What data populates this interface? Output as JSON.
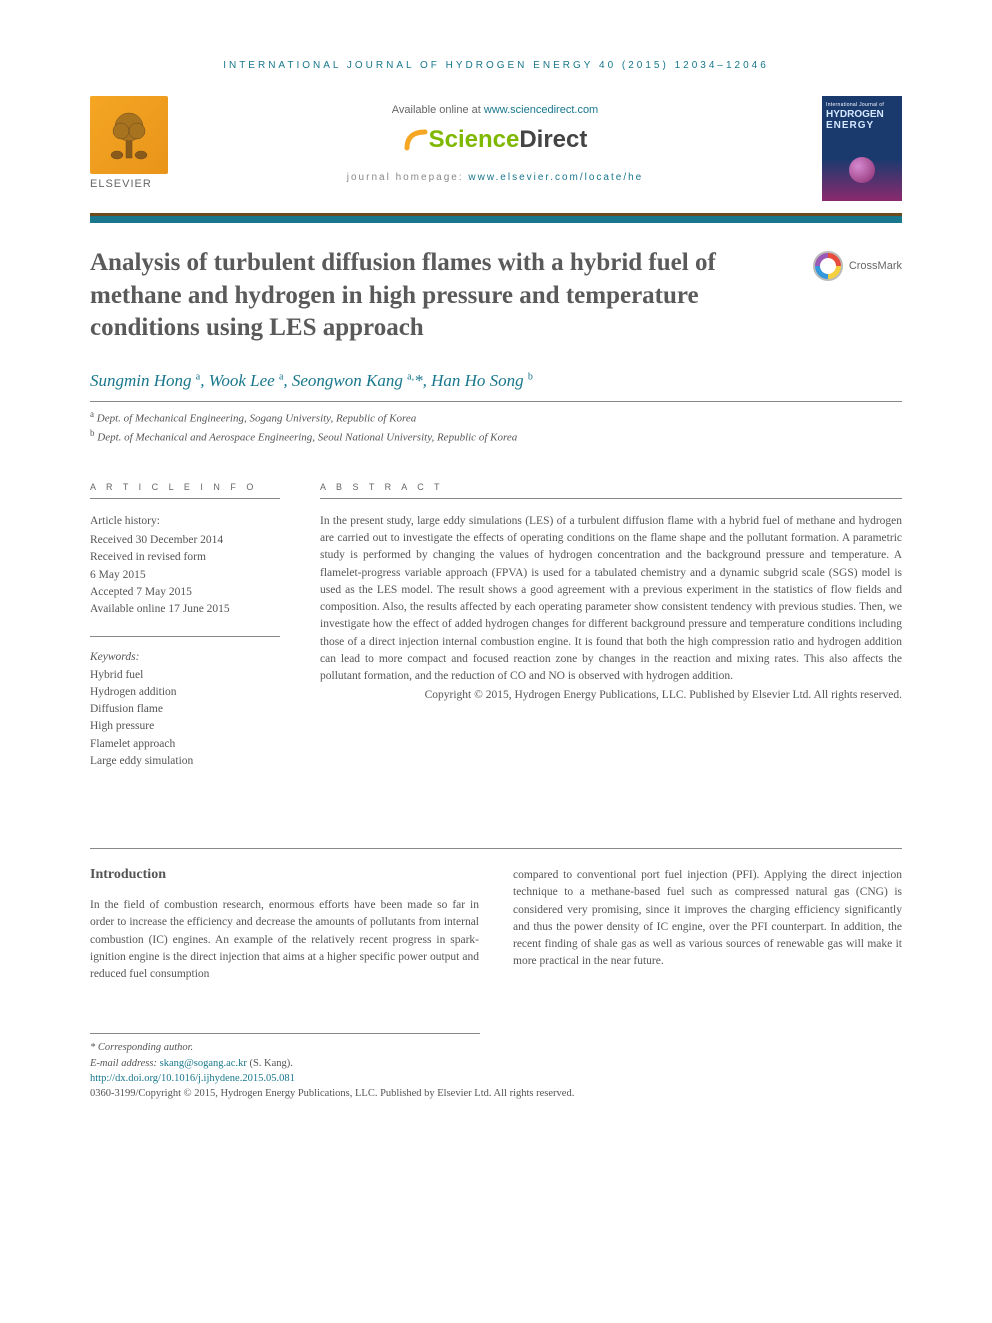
{
  "journal_ref": "INTERNATIONAL JOURNAL OF HYDROGEN ENERGY 40 (2015) 12034–12046",
  "header": {
    "elsevier": "ELSEVIER",
    "available": "Available online at ",
    "available_link": "www.sciencedirect.com",
    "sd_science": "Science",
    "sd_direct": "Direct",
    "homepage_label": "journal homepage: ",
    "homepage_link": "www.elsevier.com/locate/he",
    "cover_line1": "International Journal of",
    "cover_line2": "HYDROGEN",
    "cover_line3": "ENERGY",
    "crossmark": "CrossMark"
  },
  "title": "Analysis of turbulent diffusion flames with a hybrid fuel of methane and hydrogen in high pressure and temperature conditions using LES approach",
  "authors_html": "Sungmin Hong <sup>a</sup>, Wook Lee <sup>a</sup>, Seongwon Kang <sup>a,</sup><span class='star'>*</span>, Han Ho Song <sup>b</sup>",
  "affiliations": {
    "a": "a Dept. of Mechanical Engineering, Sogang University, Republic of Korea",
    "b": "b Dept. of Mechanical and Aerospace Engineering, Seoul National University, Republic of Korea"
  },
  "info": {
    "label": "A R T I C L E   I N F O",
    "history_title": "Article history:",
    "history": [
      "Received 30 December 2014",
      "Received in revised form",
      "6 May 2015",
      "Accepted 7 May 2015",
      "Available online 17 June 2015"
    ],
    "keywords_title": "Keywords:",
    "keywords": [
      "Hybrid fuel",
      "Hydrogen addition",
      "Diffusion flame",
      "High pressure",
      "Flamelet approach",
      "Large eddy simulation"
    ]
  },
  "abstract": {
    "label": "A B S T R A C T",
    "text": "In the present study, large eddy simulations (LES) of a turbulent diffusion flame with a hybrid fuel of methane and hydrogen are carried out to investigate the effects of operating conditions on the flame shape and the pollutant formation. A parametric study is performed by changing the values of hydrogen concentration and the background pressure and temperature. A flamelet-progress variable approach (FPVA) is used for a tabulated chemistry and a dynamic subgrid scale (SGS) model is used as the LES model. The result shows a good agreement with a previous experiment in the statistics of flow fields and composition. Also, the results affected by each operating parameter show consistent tendency with previous studies. Then, we investigate how the effect of added hydrogen changes for different background pressure and temperature conditions including those of a direct injection internal combustion engine. It is found that both the high compression ratio and hydrogen addition can lead to more compact and focused reaction zone by changes in the reaction and mixing rates. This also affects the pollutant formation, and the reduction of CO and NO is observed with hydrogen addition.",
    "copyright": "Copyright © 2015, Hydrogen Energy Publications, LLC. Published by Elsevier Ltd. All rights reserved."
  },
  "body": {
    "intro_heading": "Introduction",
    "col1": "In the field of combustion research, enormous efforts have been made so far in order to increase the efficiency and decrease the amounts of pollutants from internal combustion (IC) engines. An example of the relatively recent progress in spark-ignition engine is the direct injection that aims at a higher specific power output and reduced fuel consumption",
    "col2": "compared to conventional port fuel injection (PFI). Applying the direct injection technique to a methane-based fuel such as compressed natural gas (CNG) is considered very promising, since it improves the charging efficiency significantly and thus the power density of IC engine, over the PFI counterpart. In addition, the recent finding of shale gas as well as various sources of renewable gas will make it more practical in the near future."
  },
  "footnotes": {
    "corresponding": "* Corresponding author.",
    "email_label": "E-mail address: ",
    "email": "skang@sogang.ac.kr",
    "email_suffix": " (S. Kang).",
    "doi": "http://dx.doi.org/10.1016/j.ijhydene.2015.05.081",
    "issn_line": "0360-3199/Copyright © 2015, Hydrogen Energy Publications, LLC. Published by Elsevier Ltd. All rights reserved."
  },
  "colors": {
    "accent": "#18778c",
    "rule_top": "#6b4a1f",
    "sd_green": "#7fb800",
    "text": "#555555"
  }
}
